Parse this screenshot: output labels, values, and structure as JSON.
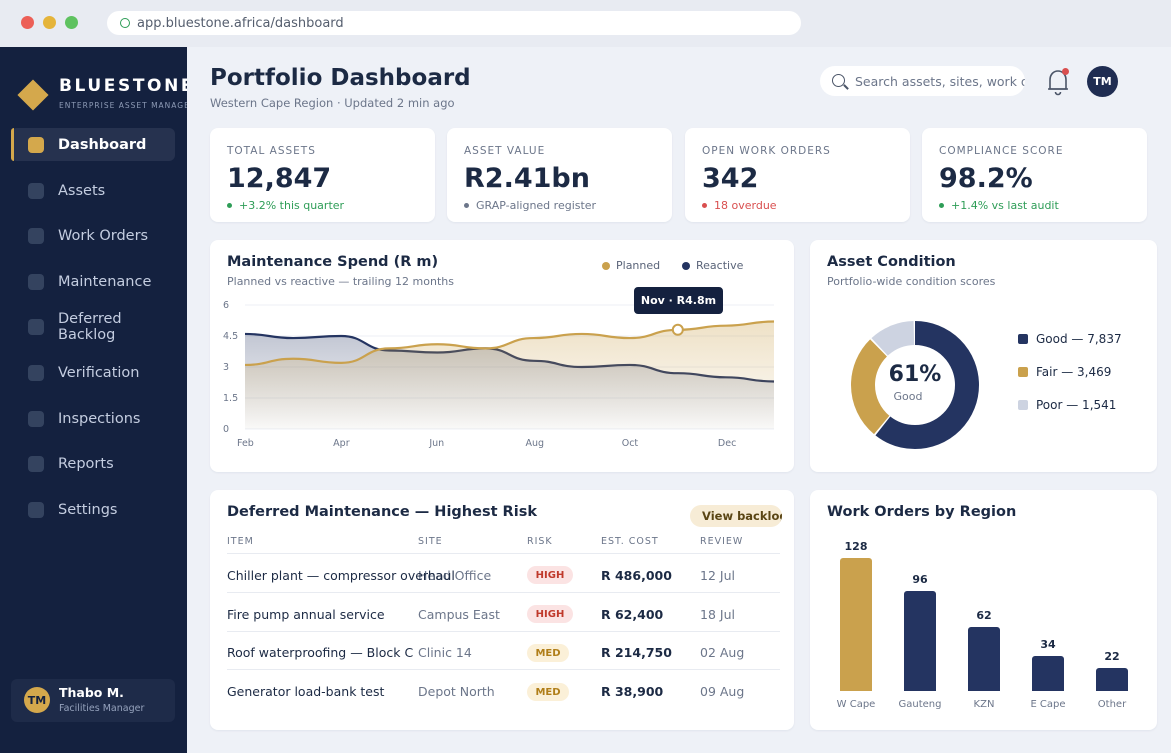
{
  "browser": {
    "url": "app.bluestone.africa/dashboard"
  },
  "sidebar": {
    "brand": "BLUESTONE",
    "tagline": "ENTERPRISE ASSET MANAGEMENT",
    "items": [
      {
        "label": "Dashboard",
        "active": true
      },
      {
        "label": "Assets"
      },
      {
        "label": "Work Orders"
      },
      {
        "label": "Maintenance"
      },
      {
        "label": "Deferred Backlog"
      },
      {
        "label": "Verification"
      },
      {
        "label": "Inspections"
      },
      {
        "label": "Reports"
      },
      {
        "label": "Settings"
      }
    ],
    "user": {
      "initials": "TM",
      "name": "Thabo M.",
      "role": "Facilities Manager"
    }
  },
  "header": {
    "title": "Portfolio Dashboard",
    "subtitle": "Western Cape Region · Updated 2 min ago",
    "search_placeholder": "Search assets, sites, work orders",
    "avatar_initials": "TM"
  },
  "kpis": [
    {
      "label": "TOTAL ASSETS",
      "value": "12,847",
      "note": "+3.2% this quarter",
      "note_color": "#2e9d57"
    },
    {
      "label": "ASSET VALUE",
      "value": "R2.41bn",
      "note": "GRAP-aligned register",
      "note_color": "#6c768a"
    },
    {
      "label": "OPEN WORK ORDERS",
      "value": "342",
      "note": "18 overdue",
      "note_color": "#d94f4f"
    },
    {
      "label": "COMPLIANCE SCORE",
      "value": "98.2%",
      "note": "+1.4% vs last audit",
      "note_color": "#2e9d57"
    }
  ],
  "spend": {
    "title": "Maintenance Spend (R m)",
    "subtitle": "Planned vs reactive — trailing 12 months",
    "tooltip": "Nov · R4.8m"
  },
  "condition": {
    "title": "Asset Condition",
    "subtitle": "Portfolio-wide condition scores",
    "center_value": "61%",
    "center_label": "Good",
    "legend": [
      "Good — 7,837",
      "Fair — 3,469",
      "Poor — 1,541"
    ]
  },
  "deferred": {
    "title": "Deferred Maintenance — Highest Risk",
    "view_label": "View backlog",
    "columns": [
      "ITEM",
      "SITE",
      "RISK",
      "EST. COST",
      "REVIEW"
    ],
    "rows": [
      {
        "item": "Chiller plant — compressor overhaul",
        "site": "Head Office",
        "risk": "HIGH",
        "cost": "R 486,000",
        "review": "12 Jul"
      },
      {
        "item": "Fire pump annual service",
        "site": "Campus East",
        "risk": "HIGH",
        "cost": "R 62,400",
        "review": "18 Jul"
      },
      {
        "item": "Roof waterproofing — Block C",
        "site": "Clinic 14",
        "risk": "MED",
        "cost": "R 214,750",
        "review": "02 Aug"
      },
      {
        "item": "Generator load-bank test",
        "site": "Depot North",
        "risk": "MED",
        "cost": "R 38,900",
        "review": "09 Aug"
      }
    ]
  },
  "regions": {
    "title": "Work Orders by Region"
  },
  "colors": {
    "navy": "#243461",
    "gold": "#caa14d",
    "poor": "#cdd3e1",
    "sidebar": "#14213f"
  },
  "chart_data": [
    {
      "type": "area",
      "title": "Maintenance Spend (R m)",
      "x": [
        "Feb",
        "Mar",
        "Apr",
        "May",
        "Jun",
        "Jul",
        "Aug",
        "Sep",
        "Oct",
        "Nov",
        "Dec",
        "Jan"
      ],
      "x_ticks": [
        "Feb",
        "Apr",
        "Jun",
        "Aug",
        "Oct",
        "Dec"
      ],
      "y_ticks": [
        "0",
        "1.5",
        "3",
        "4.5",
        "6"
      ],
      "ylim": [
        0,
        6
      ],
      "series": [
        {
          "name": "Planned",
          "color": "#caa14d",
          "values": [
            3.1,
            3.4,
            3.2,
            3.9,
            4.1,
            3.9,
            4.4,
            4.6,
            4.4,
            4.8,
            5.0,
            5.2
          ]
        },
        {
          "name": "Reactive",
          "color": "#243461",
          "values": [
            4.6,
            4.4,
            4.5,
            3.8,
            3.7,
            3.9,
            3.3,
            3.0,
            3.1,
            2.7,
            2.5,
            2.3
          ]
        }
      ],
      "highlight": {
        "x": "Nov",
        "series": "Planned",
        "value": 4.8
      },
      "legend": "top-right"
    },
    {
      "type": "pie",
      "title": "Asset Condition",
      "labels": [
        "Good",
        "Fair",
        "Poor"
      ],
      "values": [
        7837,
        3469,
        1541
      ],
      "colors": [
        "#243461",
        "#caa14d",
        "#cdd3e1"
      ]
    },
    {
      "type": "bar",
      "title": "Work Orders by Region",
      "categories": [
        "W Cape",
        "Gauteng",
        "KZN",
        "E Cape",
        "Other"
      ],
      "values": [
        128,
        96,
        62,
        34,
        22
      ],
      "colors": [
        "#caa14d",
        "#243461",
        "#243461",
        "#243461",
        "#243461"
      ],
      "ylim": [
        0,
        128
      ]
    }
  ]
}
